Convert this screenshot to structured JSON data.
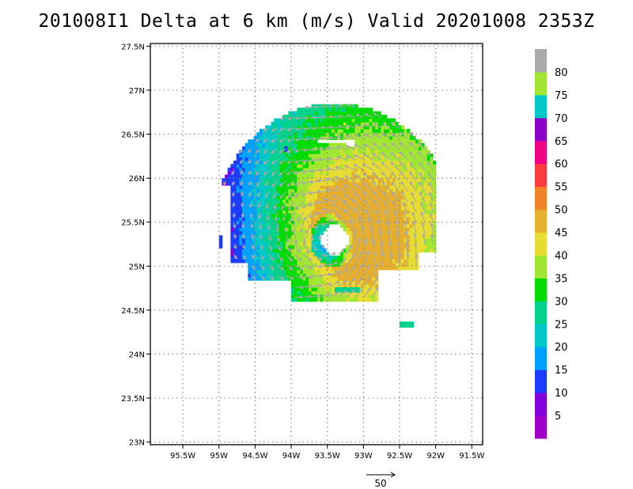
{
  "title": "201008I1 Delta at 6 km (m/s) Valid 20201008 2353Z",
  "chart_data": {
    "type": "heatmap",
    "title": "201008I1 Delta at 6 km (m/s) Valid 20201008 2353Z",
    "xlim": [
      -95.95,
      -91.35
    ],
    "ylim": [
      22.97,
      27.53
    ],
    "grid": true,
    "x_ticks": [
      {
        "value": -95.5,
        "label": "95.5W"
      },
      {
        "value": -95.0,
        "label": "95W"
      },
      {
        "value": -94.5,
        "label": "94.5W"
      },
      {
        "value": -94.0,
        "label": "94W"
      },
      {
        "value": -93.5,
        "label": "93.5W"
      },
      {
        "value": -93.0,
        "label": "93W"
      },
      {
        "value": -92.5,
        "label": "92.5W"
      },
      {
        "value": -92.0,
        "label": "92W"
      },
      {
        "value": -91.5,
        "label": "91.5W"
      }
    ],
    "y_ticks": [
      {
        "value": 23.0,
        "label": "23N"
      },
      {
        "value": 23.5,
        "label": "23.5N"
      },
      {
        "value": 24.0,
        "label": "24N"
      },
      {
        "value": 24.5,
        "label": "24.5N"
      },
      {
        "value": 25.0,
        "label": "25N"
      },
      {
        "value": 25.5,
        "label": "25.5N"
      },
      {
        "value": 26.0,
        "label": "26N"
      },
      {
        "value": 26.5,
        "label": "26.5N"
      },
      {
        "value": 27.0,
        "label": "27N"
      },
      {
        "value": 27.5,
        "label": "27.5N"
      }
    ],
    "colorbar": {
      "labels": [
        "5",
        "10",
        "15",
        "20",
        "25",
        "30",
        "35",
        "40",
        "45",
        "50",
        "55",
        "60",
        "65",
        "70",
        "75",
        "80"
      ],
      "colors": [
        "#a000c8",
        "#8200dc",
        "#1e3cff",
        "#00a0ff",
        "#00c8c8",
        "#00d28c",
        "#00dc00",
        "#a0e632",
        "#e6dc32",
        "#e6af2d",
        "#f08228",
        "#fa3c3c",
        "#f00082",
        "#8c00c8",
        "#00c8c8",
        "#a0e632",
        "#aaaaaa"
      ]
    },
    "center": {
      "lon": -93.4,
      "lat": 25.3
    },
    "reference_vector": {
      "label": "50",
      "speed": 50
    }
  }
}
